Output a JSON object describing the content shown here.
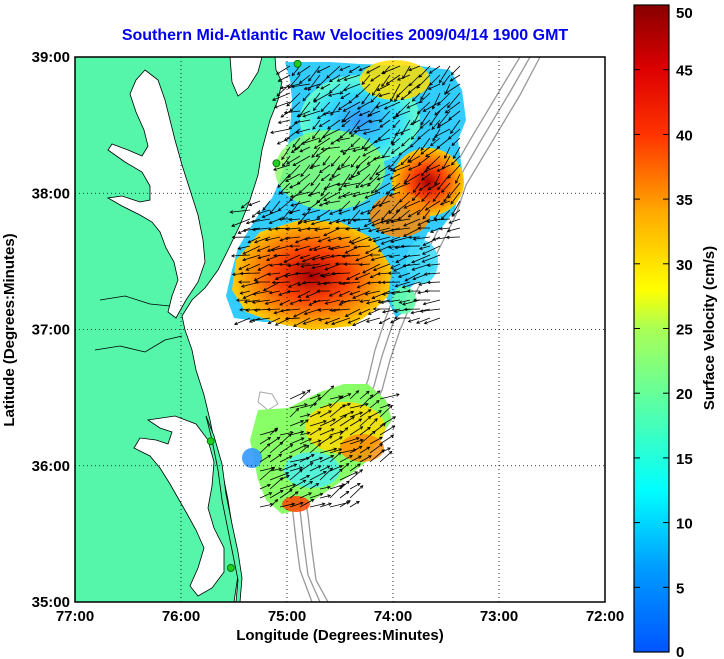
{
  "title": "Southern Mid-Atlantic Raw Velocities 2009/04/14 1900 GMT",
  "x_axis": {
    "label": "Longitude (Degrees:Minutes)",
    "range_deg": [
      -77,
      -72
    ],
    "ticks": [
      {
        "value": -77,
        "label": "77:00"
      },
      {
        "value": -76,
        "label": "76:00"
      },
      {
        "value": -75,
        "label": "75:00"
      },
      {
        "value": -74,
        "label": "74:00"
      },
      {
        "value": -73,
        "label": "73:00"
      },
      {
        "value": -72,
        "label": "72:00"
      }
    ]
  },
  "y_axis": {
    "label": "Latitude (Degrees:Minutes)",
    "range_deg": [
      35,
      39
    ],
    "ticks": [
      {
        "value": 39,
        "label": "39:00"
      },
      {
        "value": 38,
        "label": "38:00"
      },
      {
        "value": 37,
        "label": "37:00"
      },
      {
        "value": 36,
        "label": "36:00"
      },
      {
        "value": 35,
        "label": "35:00"
      }
    ]
  },
  "colorbar": {
    "label": "Surface Velocity (cm/s)",
    "range": [
      0,
      50
    ],
    "ticks": [
      "0",
      "5",
      "10",
      "15",
      "20",
      "25",
      "30",
      "35",
      "40",
      "45",
      "50"
    ]
  },
  "colors": {
    "land": "#55f5aa",
    "water": "#ffffff",
    "title": "#0000ee",
    "grid": "#000000",
    "bathymetry": "#999999",
    "station": "#22cc22"
  },
  "grid": "dotted",
  "stations": [
    {
      "lon": -74.9,
      "lat": 38.95
    },
    {
      "lon": -75.1,
      "lat": 38.22
    },
    {
      "lon": -75.72,
      "lat": 36.18
    },
    {
      "lon": -75.53,
      "lat": 35.25
    }
  ]
}
